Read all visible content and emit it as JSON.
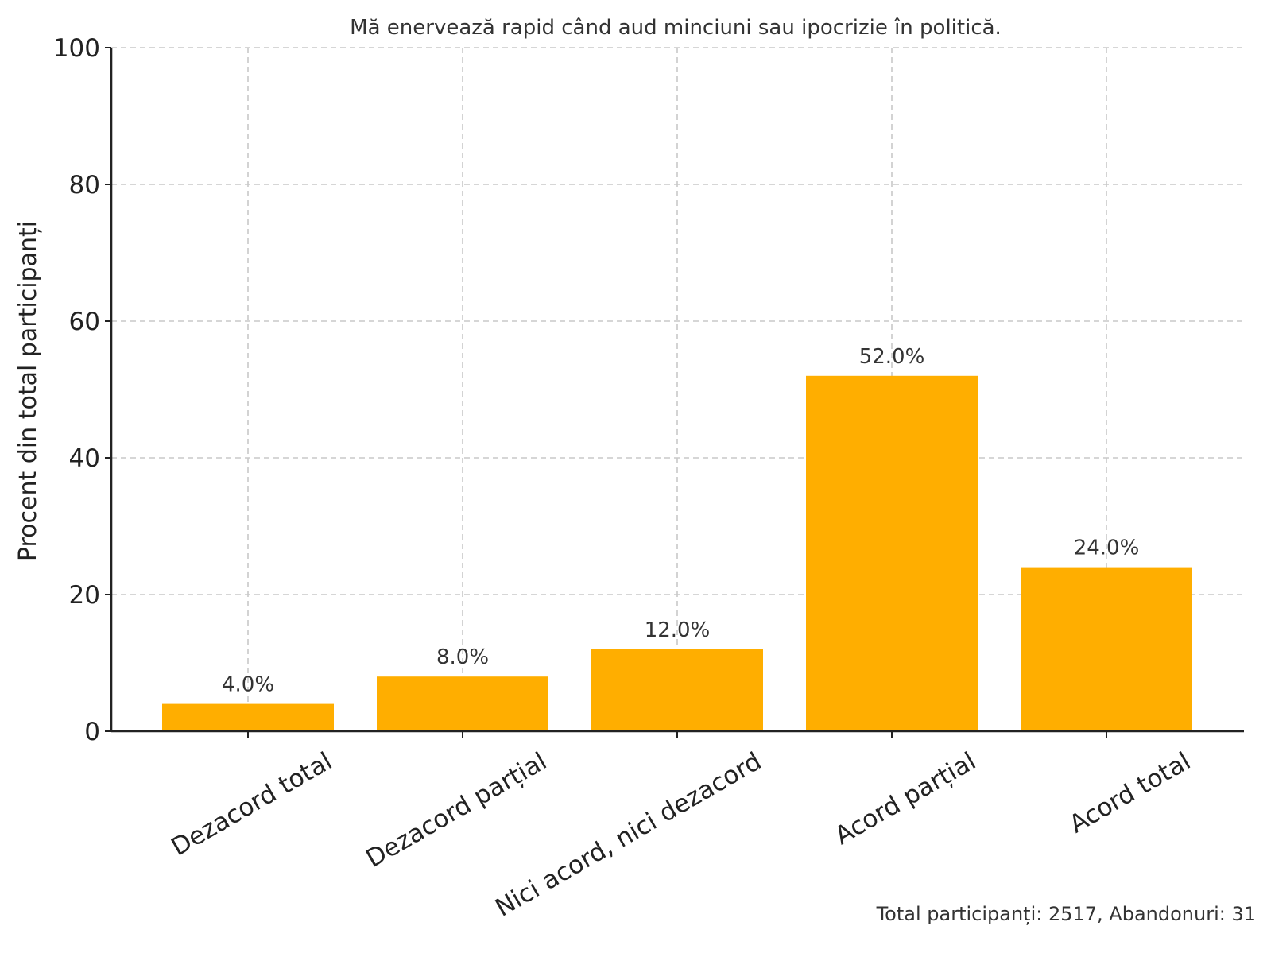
{
  "chart_data": {
    "type": "bar",
    "title": "Mă enervează rapid când aud minciuni sau ipocrizie în politică.",
    "xlabel": "",
    "ylabel": "Procent din total participanți",
    "categories": [
      "Dezacord total",
      "Dezacord parțial",
      "Nici acord, nici dezacord",
      "Acord parțial",
      "Acord total"
    ],
    "values": [
      4.0,
      8.0,
      12.0,
      52.0,
      24.0
    ],
    "value_labels": [
      "4.0%",
      "8.0%",
      "12.0%",
      "52.0%",
      "24.0%"
    ],
    "ylim": [
      0,
      100
    ],
    "yticks": [
      0,
      20,
      40,
      60,
      80,
      100
    ],
    "grid": true,
    "bar_color": "#FFAE00",
    "footer": "Total participanți: 2517, Abandonuri: 31"
  }
}
